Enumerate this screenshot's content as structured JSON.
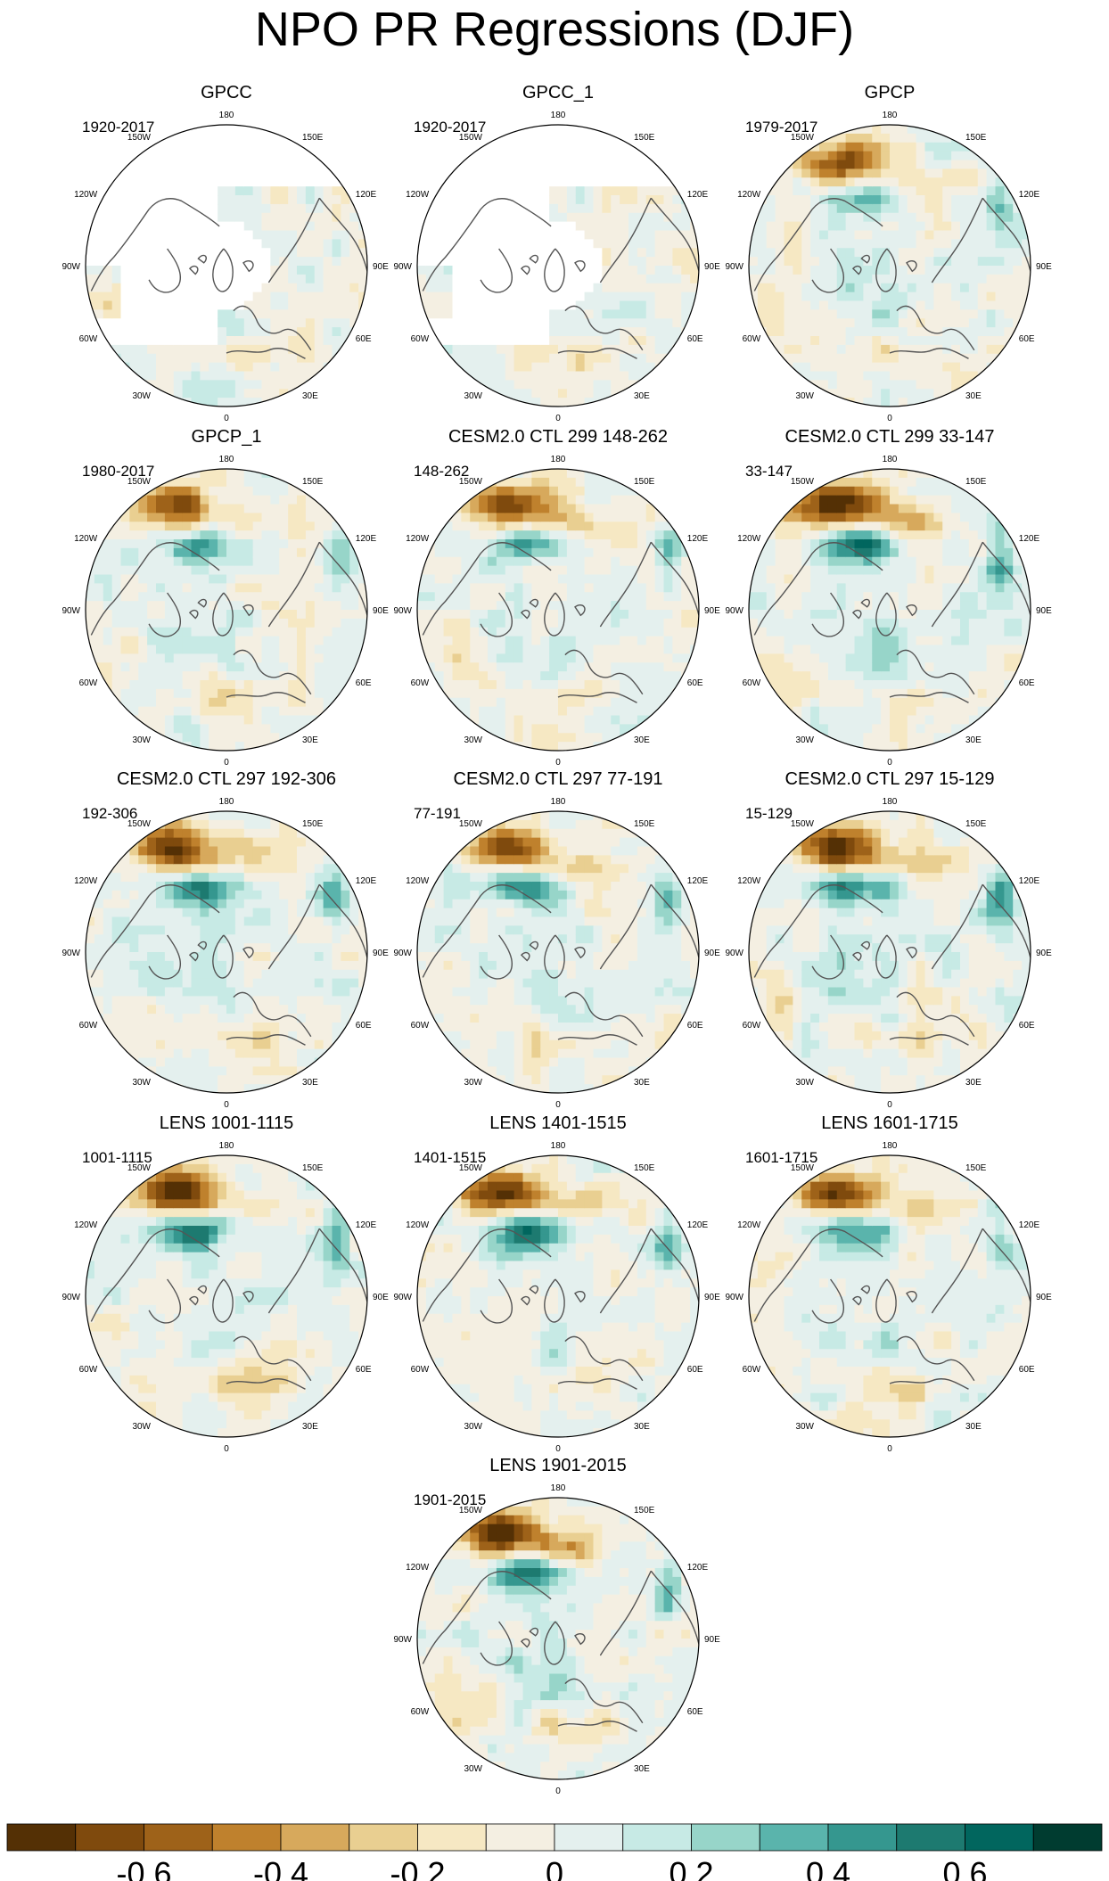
{
  "title": "NPO PR Regressions (DJF)",
  "chart_data": {
    "type": "heatmap",
    "title": "NPO PR Regressions (DJF)",
    "projection": "north polar stereographic",
    "longitude_labels": {
      "top": "180",
      "bottom": "0",
      "upper_right": "150E",
      "right_upper": "120E",
      "right": "90E",
      "right_lower": "60E",
      "lower_right": "30E",
      "upper_left": "150W",
      "left_upper": "120W",
      "left": "90W",
      "left_lower": "60W",
      "lower_left": "30W"
    },
    "panels": [
      {
        "title": "GPCC",
        "period": "1920-2017",
        "row": 1,
        "col": 1,
        "pacific_dipole": 0.0,
        "masked_north_america": true,
        "masked_arctic": true
      },
      {
        "title": "GPCC_1",
        "period": "1920-2017",
        "row": 1,
        "col": 2,
        "pacific_dipole": 0.0,
        "masked_north_america": true,
        "masked_arctic": true
      },
      {
        "title": "GPCP",
        "period": "1979-2017",
        "row": 1,
        "col": 3,
        "pacific_dipole": 0.55,
        "masked_north_america": false,
        "masked_arctic": false
      },
      {
        "title": "GPCP_1",
        "period": "1980-2017",
        "row": 2,
        "col": 1,
        "pacific_dipole": 0.55,
        "masked_north_america": false,
        "masked_arctic": false
      },
      {
        "title": "CESM2.0 CTL 299 148-262",
        "period": "148-262",
        "row": 2,
        "col": 2,
        "pacific_dipole": 0.7,
        "masked_north_america": false,
        "masked_arctic": false
      },
      {
        "title": "CESM2.0 CTL 299 33-147",
        "period": "33-147",
        "row": 2,
        "col": 3,
        "pacific_dipole": 0.75,
        "masked_north_america": false,
        "masked_arctic": false
      },
      {
        "title": "CESM2.0 CTL 297 192-306",
        "period": "192-306",
        "row": 3,
        "col": 1,
        "pacific_dipole": 0.7,
        "masked_north_america": false,
        "masked_arctic": false
      },
      {
        "title": "CESM2.0 CTL 297 77-191",
        "period": "77-191",
        "row": 3,
        "col": 2,
        "pacific_dipole": 0.7,
        "masked_north_america": false,
        "masked_arctic": false
      },
      {
        "title": "CESM2.0 CTL 297 15-129",
        "period": "15-129",
        "row": 3,
        "col": 3,
        "pacific_dipole": 0.7,
        "masked_north_america": false,
        "masked_arctic": false
      },
      {
        "title": "LENS 1001-1115",
        "period": "1001-1115",
        "row": 4,
        "col": 1,
        "pacific_dipole": 0.75,
        "masked_north_america": false,
        "masked_arctic": false
      },
      {
        "title": "LENS 1401-1515",
        "period": "1401-1515",
        "row": 4,
        "col": 2,
        "pacific_dipole": 0.75,
        "masked_north_america": false,
        "masked_arctic": false
      },
      {
        "title": "LENS 1601-1715",
        "period": "1601-1715",
        "row": 4,
        "col": 3,
        "pacific_dipole": 0.7,
        "masked_north_america": false,
        "masked_arctic": false
      },
      {
        "title": "LENS 1901-2015",
        "period": "1901-2015",
        "row": 5,
        "col": 2,
        "pacific_dipole": 0.75,
        "masked_north_america": false,
        "masked_arctic": false
      }
    ],
    "colorbar": {
      "levels": [
        -0.7,
        -0.6,
        -0.5,
        -0.4,
        -0.3,
        -0.2,
        -0.1,
        0,
        0.1,
        0.2,
        0.3,
        0.4,
        0.5,
        0.6,
        0.7
      ],
      "colors": [
        "#543005",
        "#7f4a0d",
        "#9e6219",
        "#bf812d",
        "#d7a95c",
        "#e9cf91",
        "#f6e8c3",
        "#f4efe2",
        "#e4f0ee",
        "#c7eae5",
        "#97d5c9",
        "#5ab4ac",
        "#35978f",
        "#1d7a70",
        "#01665e",
        "#003c30"
      ],
      "tick_values": [
        -0.6,
        -0.4,
        -0.2,
        0,
        0.2,
        0.4,
        0.6
      ],
      "tick_labels": [
        "-0.6",
        "-0.4",
        "-0.2",
        "0",
        "0.2",
        "0.4",
        "0.6"
      ]
    }
  }
}
